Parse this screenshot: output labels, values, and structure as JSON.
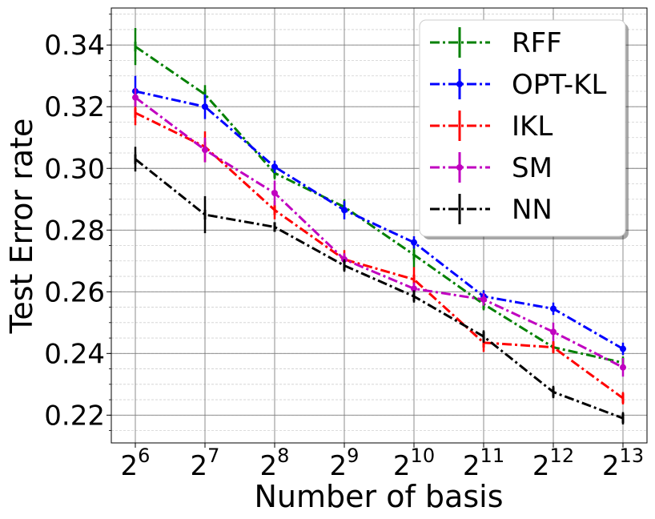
{
  "chart_data": {
    "type": "line",
    "xlabel": "Number of basis",
    "ylabel": "Test Error rate",
    "x_base": "2",
    "x_exponents": [
      "6",
      "7",
      "8",
      "9",
      "10",
      "11",
      "12",
      "13"
    ],
    "ylim": [
      0.211,
      0.352
    ],
    "y_ticks": [
      0.22,
      0.24,
      0.26,
      0.28,
      0.3,
      0.32,
      0.34
    ],
    "y_tick_labels": [
      "0.22",
      "0.24",
      "0.26",
      "0.28",
      "0.30",
      "0.32",
      "0.34"
    ],
    "grid": true,
    "legend_position": "top-right",
    "series": [
      {
        "name": "RFF",
        "color": "#008000",
        "marker": "tick",
        "values": [
          0.3395,
          0.324,
          0.2985,
          0.2875,
          0.272,
          0.256,
          0.242,
          0.237
        ],
        "errors": [
          0.006,
          0.003,
          0.002,
          0.0025,
          0.004,
          0.002,
          0.002,
          0.002
        ]
      },
      {
        "name": "OPT-KL",
        "color": "#0000ff",
        "marker": "dot",
        "values": [
          0.325,
          0.32,
          0.3005,
          0.2865,
          0.276,
          0.2585,
          0.2545,
          0.2415
        ],
        "errors": [
          0.005,
          0.004,
          0.002,
          0.003,
          0.002,
          0.002,
          0.002,
          0.002
        ]
      },
      {
        "name": "IKL",
        "color": "#ff0000",
        "marker": "tick",
        "values": [
          0.318,
          0.307,
          0.2865,
          0.2705,
          0.264,
          0.2435,
          0.242,
          0.2255
        ],
        "errors": [
          0.004,
          0.005,
          0.003,
          0.003,
          0.004,
          0.003,
          0.002,
          0.002
        ]
      },
      {
        "name": "SM",
        "color": "#c000c0",
        "marker": "dot",
        "values": [
          0.323,
          0.306,
          0.292,
          0.2705,
          0.261,
          0.2575,
          0.247,
          0.2355
        ],
        "errors": [
          0.003,
          0.004,
          0.004,
          0.002,
          0.002,
          0.002,
          0.003,
          0.003
        ]
      },
      {
        "name": "NN",
        "color": "#000000",
        "marker": "tick",
        "values": [
          0.303,
          0.285,
          0.281,
          0.2685,
          0.2585,
          0.2455,
          0.2275,
          0.219
        ],
        "errors": [
          0.004,
          0.006,
          0.001,
          0.002,
          0.002,
          0.002,
          0.002,
          0.002
        ]
      }
    ]
  }
}
